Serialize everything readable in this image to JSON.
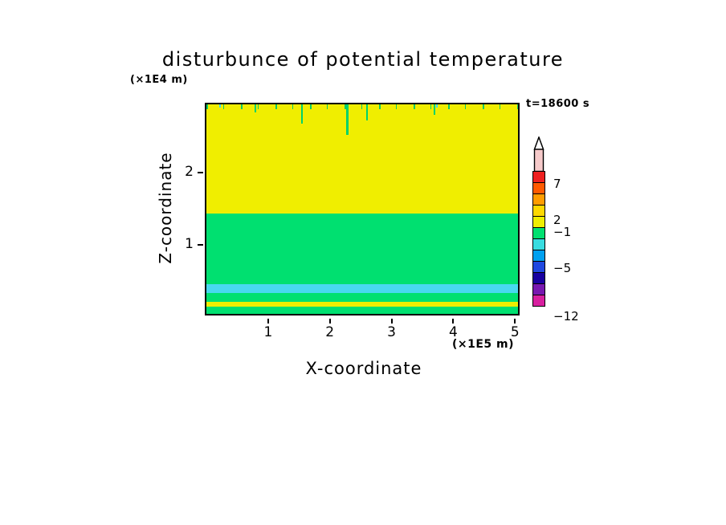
{
  "chart_data": {
    "type": "heatmap",
    "title": "disturbunce of potential temperature",
    "time_label": "t=18600 s",
    "xlabel": "X-coordinate",
    "x_unit": "(×1E5 m)",
    "ylabel": "Z-coordinate",
    "y_unit": "(×1E4 m)",
    "x_range": [
      0,
      5.1
    ],
    "z_range": [
      0,
      2.95
    ],
    "x_ticks": [
      1,
      2,
      3,
      4,
      5
    ],
    "z_ticks": [
      2,
      1
    ],
    "bands": [
      {
        "z_from": 1.44,
        "z_to": 2.95,
        "color": "#f0ee00"
      },
      {
        "z_from": 0.46,
        "z_to": 1.44,
        "color": "#00e070"
      },
      {
        "z_from": 0.33,
        "z_to": 0.46,
        "color": "#48d8f0"
      },
      {
        "z_from": 0.21,
        "z_to": 0.33,
        "color": "#00e070"
      },
      {
        "z_from": 0.14,
        "z_to": 0.21,
        "color": "#f0ee00"
      },
      {
        "z_from": 0.0,
        "z_to": 0.14,
        "color": "#00e070"
      }
    ],
    "colorbar": {
      "orientation": "vertical",
      "tick_values": [
        7,
        2,
        -1,
        -5,
        -12
      ],
      "ticks": [
        {
          "label": "7",
          "boundary_index": 1
        },
        {
          "label": "2",
          "boundary_index": 4
        },
        {
          "label": "−1",
          "boundary_index": 5
        },
        {
          "label": "−5",
          "boundary_index": 8
        },
        {
          "label": "−12",
          "boundary_index": 12
        }
      ],
      "colors_top_to_bottom": [
        "#ee2020",
        "#ff5a00",
        "#ff9c00",
        "#ffd800",
        "#f0ee00",
        "#00e070",
        "#38dce0",
        "#00a0f0",
        "#2048e0",
        "#1800a0",
        "#7818b0",
        "#d820a0"
      ],
      "arrow_tip_color": "#ffffff",
      "arrow_body_color": "#f6caca"
    }
  }
}
